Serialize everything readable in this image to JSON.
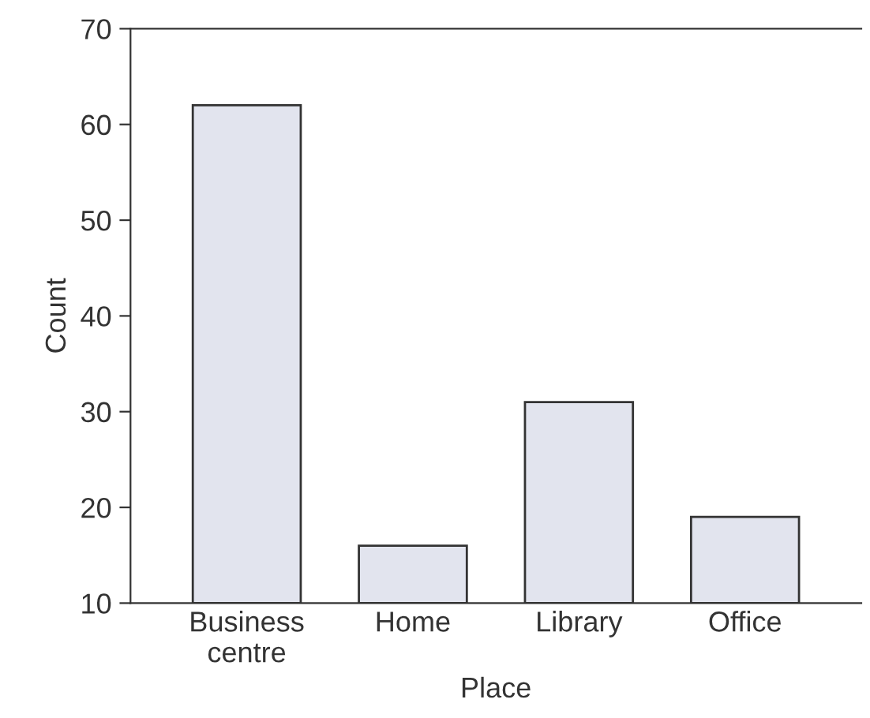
{
  "chart_data": {
    "type": "bar",
    "xlabel": "Place",
    "ylabel": "Count",
    "categories": [
      "Business\ncentre",
      "Home",
      "Library",
      "Office"
    ],
    "values": [
      62,
      16,
      31,
      19
    ],
    "color": "#e2e4ee",
    "ylim": [
      10,
      70
    ],
    "yticks": [
      10,
      20,
      30,
      40,
      50,
      60,
      70
    ],
    "grid": false
  }
}
